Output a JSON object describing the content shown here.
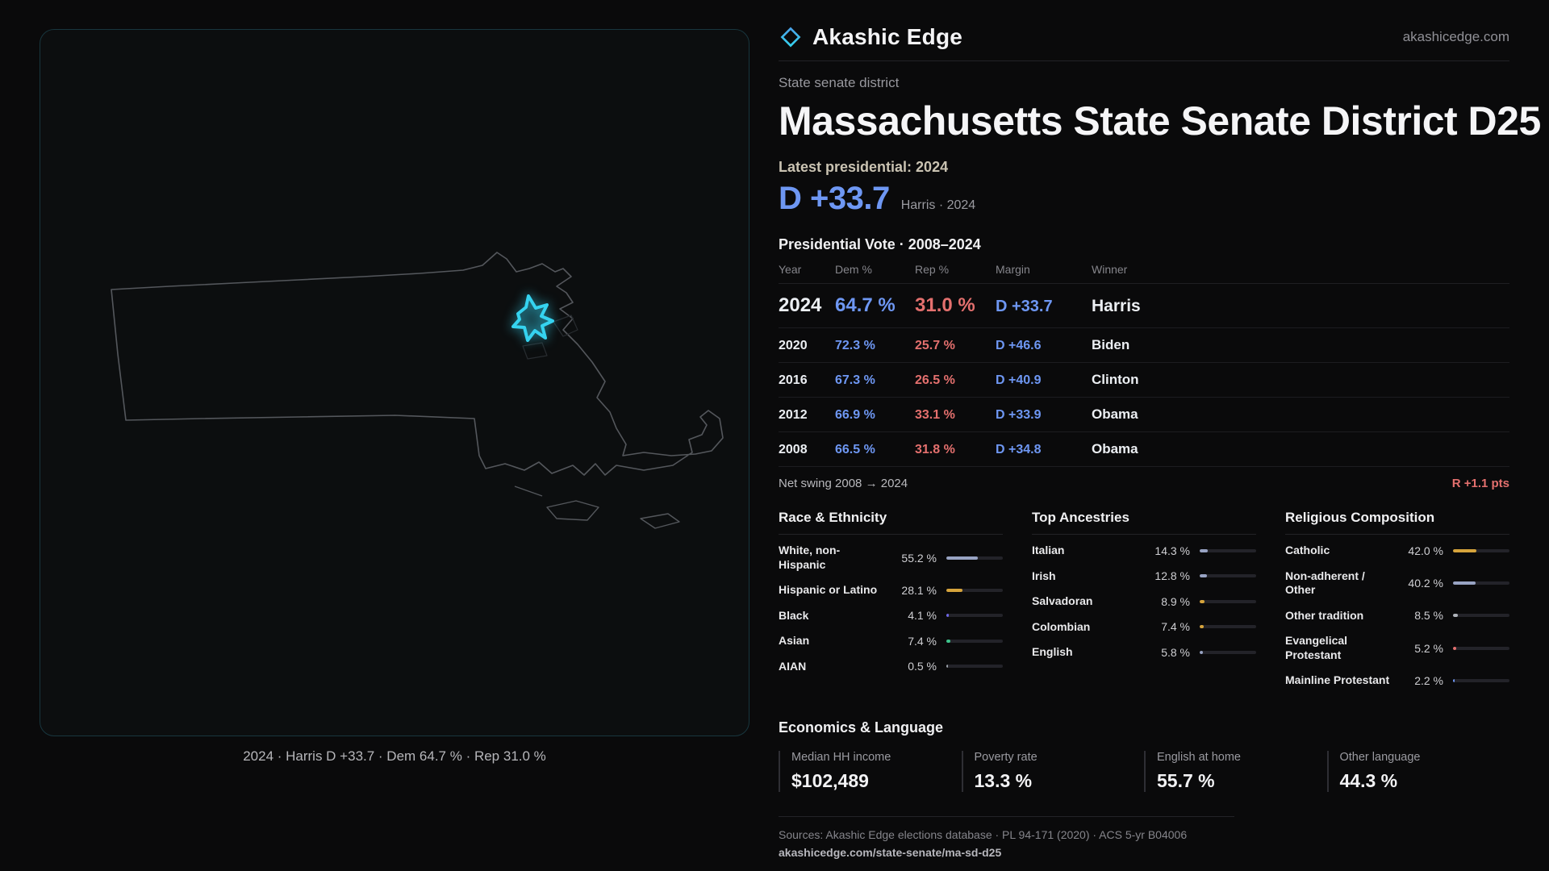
{
  "brand": {
    "name": "Akashic Edge",
    "website": "akashicedge.com"
  },
  "header": {
    "kicker": "State senate district",
    "title": "Massachusetts State Senate District D25"
  },
  "latest": {
    "label": "Latest presidential: 2024",
    "margin": "D +33.7",
    "note": "Harris · 2024"
  },
  "vote_table": {
    "title": "Presidential Vote · 2008–2024",
    "columns": [
      "Year",
      "Dem %",
      "Rep %",
      "Margin",
      "Winner"
    ],
    "rows": [
      {
        "year": "2024",
        "dem": "64.7 %",
        "rep": "31.0 %",
        "margin": "D +33.7",
        "winner": "Harris",
        "emphasis": true
      },
      {
        "year": "2020",
        "dem": "72.3 %",
        "rep": "25.7 %",
        "margin": "D +46.6",
        "winner": "Biden",
        "emphasis": false
      },
      {
        "year": "2016",
        "dem": "67.3 %",
        "rep": "26.5 %",
        "margin": "D +40.9",
        "winner": "Clinton",
        "emphasis": false
      },
      {
        "year": "2012",
        "dem": "66.9 %",
        "rep": "33.1 %",
        "margin": "D +33.9",
        "winner": "Obama",
        "emphasis": false
      },
      {
        "year": "2008",
        "dem": "66.5 %",
        "rep": "31.8 %",
        "margin": "D +34.8",
        "winner": "Obama",
        "emphasis": false
      }
    ]
  },
  "swing": {
    "label": "Net swing 2008 → 2024",
    "value": "R +1.1 pts"
  },
  "demographics": [
    {
      "title": "Race & Ethnicity",
      "rows": [
        {
          "label": "White, non-Hispanic",
          "value": "55.2 %",
          "pct": 55.2,
          "color": "#98a3c3"
        },
        {
          "label": "Hispanic or Latino",
          "value": "28.1 %",
          "pct": 28.1,
          "color": "#d6a43c"
        },
        {
          "label": "Black",
          "value": "4.1 %",
          "pct": 4.1,
          "color": "#6f67e8"
        },
        {
          "label": "Asian",
          "value": "7.4 %",
          "pct": 7.4,
          "color": "#3dc48b"
        },
        {
          "label": "AIAN",
          "value": "0.5 %",
          "pct": 0.5,
          "color": "#9aa0a8"
        }
      ]
    },
    {
      "title": "Top Ancestries",
      "rows": [
        {
          "label": "Italian",
          "value": "14.3 %",
          "pct": 14.3,
          "color": "#98a3c3"
        },
        {
          "label": "Irish",
          "value": "12.8 %",
          "pct": 12.8,
          "color": "#98a3c3"
        },
        {
          "label": "Salvadoran",
          "value": "8.9 %",
          "pct": 8.9,
          "color": "#d6a43c"
        },
        {
          "label": "Colombian",
          "value": "7.4 %",
          "pct": 7.4,
          "color": "#d6a43c"
        },
        {
          "label": "English",
          "value": "5.8 %",
          "pct": 5.8,
          "color": "#98a3c3"
        }
      ]
    },
    {
      "title": "Religious Composition",
      "rows": [
        {
          "label": "Catholic",
          "value": "42.0 %",
          "pct": 42.0,
          "color": "#d6a43c"
        },
        {
          "label": "Non-adherent / Other",
          "value": "40.2 %",
          "pct": 40.2,
          "color": "#98a3c3"
        },
        {
          "label": "Other tradition",
          "value": "8.5 %",
          "pct": 8.5,
          "color": "#aeb3ba"
        },
        {
          "label": "Evangelical Protestant",
          "value": "5.2 %",
          "pct": 5.2,
          "color": "#e4706e"
        },
        {
          "label": "Mainline Protestant",
          "value": "2.2 %",
          "pct": 2.2,
          "color": "#6e97f3"
        }
      ]
    }
  ],
  "economics": {
    "title": "Economics & Language",
    "stats": [
      {
        "label": "Median HH income",
        "value": "$102,489"
      },
      {
        "label": "Poverty rate",
        "value": "13.3 %"
      },
      {
        "label": "English at home",
        "value": "55.7 %"
      },
      {
        "label": "Other language",
        "value": "44.3 %"
      }
    ]
  },
  "footer": {
    "sources": "Sources: Akashic Edge elections database · PL 94-171 (2020) · ACS 5-yr B04006",
    "permalink": "akashicedge.com/state-senate/ma-sd-d25"
  },
  "map": {
    "caption": "2024 · Harris D +33.7 · Dem 64.7 % · Rep 31.0 %",
    "district_color": "#35d3f0"
  },
  "colors": {
    "dem": "#6e97f3",
    "rep": "#e4706e",
    "accent": "#35d3f0",
    "gold": "#d6a43c"
  },
  "chart_data": [
    {
      "type": "table",
      "title": "Presidential Vote · 2008–2024",
      "columns": [
        "Year",
        "Dem %",
        "Rep %",
        "Margin",
        "Winner"
      ],
      "rows": [
        [
          "2024",
          64.7,
          31.0,
          "D +33.7",
          "Harris"
        ],
        [
          "2020",
          72.3,
          25.7,
          "D +46.6",
          "Biden"
        ],
        [
          "2016",
          67.3,
          26.5,
          "D +40.9",
          "Clinton"
        ],
        [
          "2012",
          66.9,
          33.1,
          "D +33.9",
          "Obama"
        ],
        [
          "2008",
          66.5,
          31.8,
          "D +34.8",
          "Obama"
        ]
      ]
    },
    {
      "type": "bar",
      "title": "Race & Ethnicity",
      "categories": [
        "White, non-Hispanic",
        "Hispanic or Latino",
        "Black",
        "Asian",
        "AIAN"
      ],
      "values": [
        55.2,
        28.1,
        4.1,
        7.4,
        0.5
      ],
      "unit": "%",
      "xlim": [
        0,
        100
      ]
    },
    {
      "type": "bar",
      "title": "Top Ancestries",
      "categories": [
        "Italian",
        "Irish",
        "Salvadoran",
        "Colombian",
        "English"
      ],
      "values": [
        14.3,
        12.8,
        8.9,
        7.4,
        5.8
      ],
      "unit": "%",
      "xlim": [
        0,
        100
      ]
    },
    {
      "type": "bar",
      "title": "Religious Composition",
      "categories": [
        "Catholic",
        "Non-adherent / Other",
        "Other tradition",
        "Evangelical Protestant",
        "Mainline Protestant"
      ],
      "values": [
        42.0,
        40.2,
        8.5,
        5.2,
        2.2
      ],
      "unit": "%",
      "xlim": [
        0,
        100
      ]
    },
    {
      "type": "bar",
      "title": "Economics & Language",
      "categories": [
        "Median HH income",
        "Poverty rate",
        "English at home",
        "Other language"
      ],
      "values": [
        102489,
        13.3,
        55.7,
        44.3
      ]
    }
  ]
}
